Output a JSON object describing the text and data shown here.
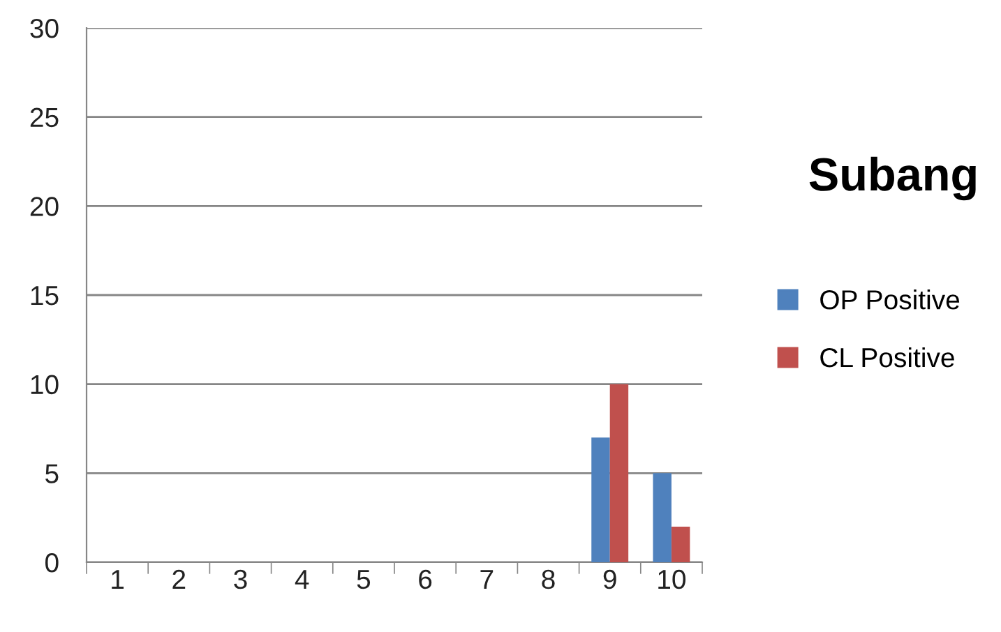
{
  "chart_data": {
    "type": "bar",
    "title": "Subang",
    "categories": [
      "1",
      "2",
      "3",
      "4",
      "5",
      "6",
      "7",
      "8",
      "9",
      "10"
    ],
    "series": [
      {
        "name": "OP Positive",
        "color": "#4f81bd",
        "values": [
          0,
          0,
          0,
          0,
          0,
          0,
          0,
          0,
          7,
          5
        ]
      },
      {
        "name": "CL Positive",
        "color": "#c0504d",
        "values": [
          0,
          0,
          0,
          0,
          0,
          0,
          0,
          0,
          10,
          2
        ]
      }
    ],
    "ylim": [
      0,
      30
    ],
    "yticks": [
      0,
      5,
      10,
      15,
      20,
      25,
      30
    ],
    "grid": "y",
    "legend": "right"
  }
}
